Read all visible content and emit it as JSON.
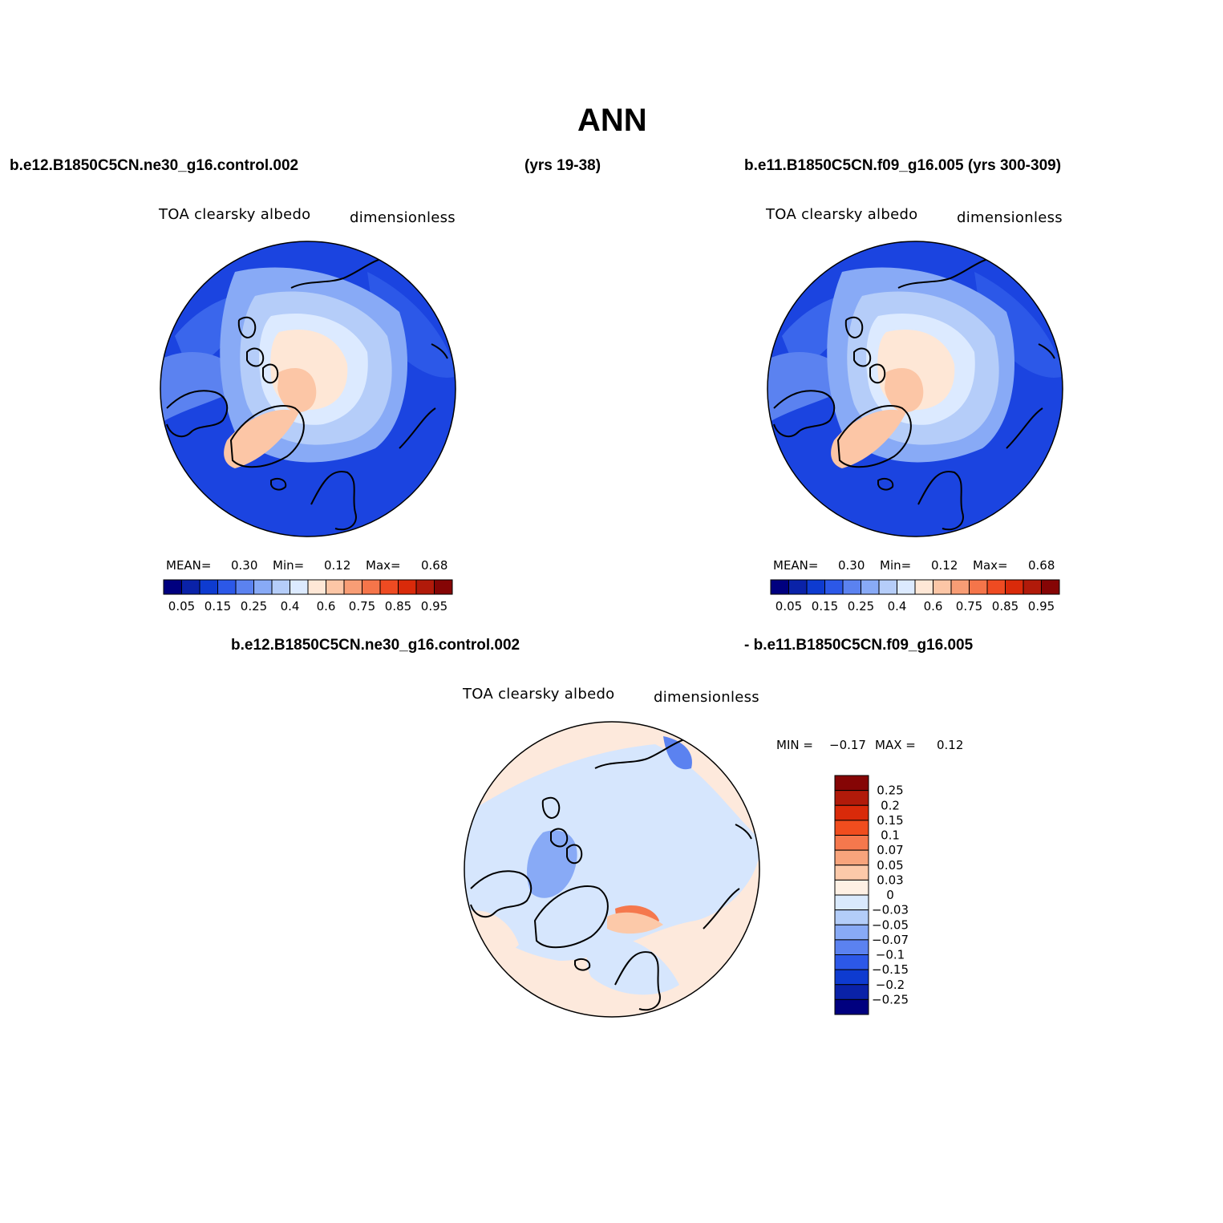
{
  "title": "ANN",
  "header": {
    "case1": "b.e12.B1850C5CN.ne30_g16.control.002",
    "years1": "(yrs 19-38)",
    "case2": "b.e11.B1850C5CN.f09_g16.005 (yrs 300-309)",
    "diff_left": "b.e12.B1850C5CN.ne30_g16.control.002",
    "diff_right": "- b.e11.B1850C5CN.f09_g16.005"
  },
  "panels": [
    {
      "variable": "TOA clearsky albedo",
      "units": "dimensionless",
      "stats": {
        "mean_label": "MEAN=",
        "mean": "0.30",
        "min_label": "Min=",
        "min": "0.12",
        "max_label": "Max=",
        "max": "0.68"
      },
      "field": "albedo"
    },
    {
      "variable": "TOA clearsky albedo",
      "units": "dimensionless",
      "stats": {
        "mean_label": "MEAN=",
        "mean": "0.30",
        "min_label": "Min=",
        "min": "0.12",
        "max_label": "Max=",
        "max": "0.68"
      },
      "field": "albedo"
    },
    {
      "variable": "TOA clearsky albedo",
      "units": "dimensionless",
      "stats": {
        "min_label": "MIN =",
        "min": "−0.17",
        "max_label": "MAX =",
        "max": "0.12"
      },
      "field": "difference"
    }
  ],
  "colorbars": {
    "horizontal": {
      "colors": [
        "#00007f",
        "#0a22a8",
        "#0e3bd0",
        "#2c58e8",
        "#5b82f0",
        "#88aaf6",
        "#b5cdf9",
        "#dceaff",
        "#fee7d6",
        "#fcc6a6",
        "#f89d75",
        "#f5754a",
        "#ef4b22",
        "#d92a0a",
        "#b11a0a",
        "#850505"
      ],
      "labels": [
        "0.05",
        "0.15",
        "0.25",
        "0.4",
        "0.6",
        "0.75",
        "0.85",
        "0.95"
      ]
    },
    "vertical": {
      "colors_top_to_bottom": [
        "#850505",
        "#b11a0a",
        "#d92a0a",
        "#f04d1e",
        "#f5784d",
        "#f8a47c",
        "#fcc9a9",
        "#fef0e4",
        "#d9e9fd",
        "#b3cdf9",
        "#88aaf6",
        "#5b82f0",
        "#2c58e8",
        "#0e3bd0",
        "#0a22a8",
        "#00007f"
      ],
      "labels": [
        "0.25",
        "0.2",
        "0.15",
        "0.1",
        "0.07",
        "0.05",
        "0.03",
        "0",
        "−0.03",
        "−0.05",
        "−0.07",
        "−0.1",
        "−0.15",
        "−0.2",
        "−0.25"
      ]
    }
  }
}
